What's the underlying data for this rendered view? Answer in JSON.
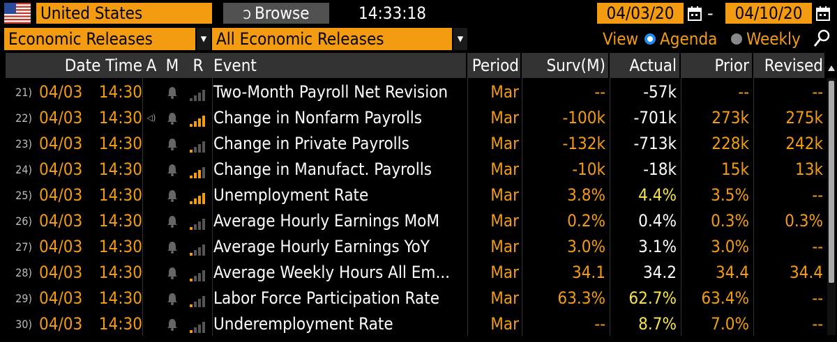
{
  "header": {
    "country": "United States",
    "browse_label": "Browse",
    "time": "14:33:18",
    "date_start": "04/03/20",
    "date_separator": "-",
    "date_end": "04/10/20"
  },
  "filters": {
    "category": "Economic Releases",
    "subcategory": "All Economic Releases",
    "view_label": "View",
    "agenda_label": "Agenda",
    "weekly_label": "Weekly",
    "selected_view": "Agenda"
  },
  "columns": {
    "datetime": "Date Time",
    "a": "A",
    "m": "M",
    "r": "R",
    "event": "Event",
    "period": "Period",
    "surv": "Surv(M)",
    "actual": "Actual",
    "prior": "Prior",
    "revised": "Revised"
  },
  "rows": [
    {
      "idx": "21)",
      "date": "04/03",
      "time": "14:30",
      "audio": false,
      "relevance": 0,
      "event": "Two-Month Payroll Net Revision",
      "period": "Mar",
      "surv": "--",
      "actual": "-57k",
      "actual_color": "white",
      "prior": "--",
      "revised": "--"
    },
    {
      "idx": "22)",
      "date": "04/03",
      "time": "14:30",
      "audio": true,
      "relevance": 5,
      "event": "Change in Nonfarm Payrolls",
      "period": "Mar",
      "surv": "-100k",
      "actual": "-701k",
      "actual_color": "white",
      "prior": "273k",
      "revised": "275k"
    },
    {
      "idx": "23)",
      "date": "04/03",
      "time": "14:30",
      "audio": false,
      "relevance": 1,
      "event": "Change in Private Payrolls",
      "period": "Mar",
      "surv": "-132k",
      "actual": "-713k",
      "actual_color": "white",
      "prior": "228k",
      "revised": "242k"
    },
    {
      "idx": "24)",
      "date": "04/03",
      "time": "14:30",
      "audio": false,
      "relevance": 3,
      "event": "Change in Manufact. Payrolls",
      "period": "Mar",
      "surv": "-10k",
      "actual": "-18k",
      "actual_color": "white",
      "prior": "15k",
      "revised": "13k"
    },
    {
      "idx": "25)",
      "date": "04/03",
      "time": "14:30",
      "audio": false,
      "relevance": 5,
      "event": "Unemployment Rate",
      "period": "Mar",
      "surv": "3.8%",
      "actual": "4.4%",
      "actual_color": "yellow",
      "prior": "3.5%",
      "revised": "--"
    },
    {
      "idx": "26)",
      "date": "04/03",
      "time": "14:30",
      "audio": false,
      "relevance": 1,
      "event": "Average Hourly Earnings MoM",
      "period": "Mar",
      "surv": "0.2%",
      "actual": "0.4%",
      "actual_color": "white",
      "prior": "0.3%",
      "revised": "0.3%"
    },
    {
      "idx": "27)",
      "date": "04/03",
      "time": "14:30",
      "audio": false,
      "relevance": 1,
      "event": "Average Hourly Earnings YoY",
      "period": "Mar",
      "surv": "3.0%",
      "actual": "3.1%",
      "actual_color": "white",
      "prior": "3.0%",
      "revised": "--"
    },
    {
      "idx": "28)",
      "date": "04/03",
      "time": "14:30",
      "audio": false,
      "relevance": 1,
      "event": "Average Weekly Hours All Em...",
      "period": "Mar",
      "surv": "34.1",
      "actual": "34.2",
      "actual_color": "white",
      "prior": "34.4",
      "revised": "34.4"
    },
    {
      "idx": "29)",
      "date": "04/03",
      "time": "14:30",
      "audio": false,
      "relevance": 1,
      "event": "Labor Force Participation Rate",
      "period": "Mar",
      "surv": "63.3%",
      "actual": "62.7%",
      "actual_color": "yellow",
      "prior": "63.4%",
      "revised": "--"
    },
    {
      "idx": "30)",
      "date": "04/03",
      "time": "14:30",
      "audio": false,
      "relevance": 1,
      "event": "Underemployment Rate",
      "period": "Mar",
      "surv": "--",
      "actual": "8.7%",
      "actual_color": "yellow",
      "prior": "7.0%",
      "revised": "--"
    }
  ],
  "colors": {
    "accent": "#f39c12",
    "highlight": "#f7e34b",
    "header_bg": "#333333"
  },
  "icons": {
    "flag": "us-flag-icon",
    "browse": "browse-icon",
    "calendar": "calendar-icon",
    "alert": "bell-icon",
    "relevance": "signal-bars-icon",
    "audio": "speaker-icon",
    "search": "search-icon"
  }
}
